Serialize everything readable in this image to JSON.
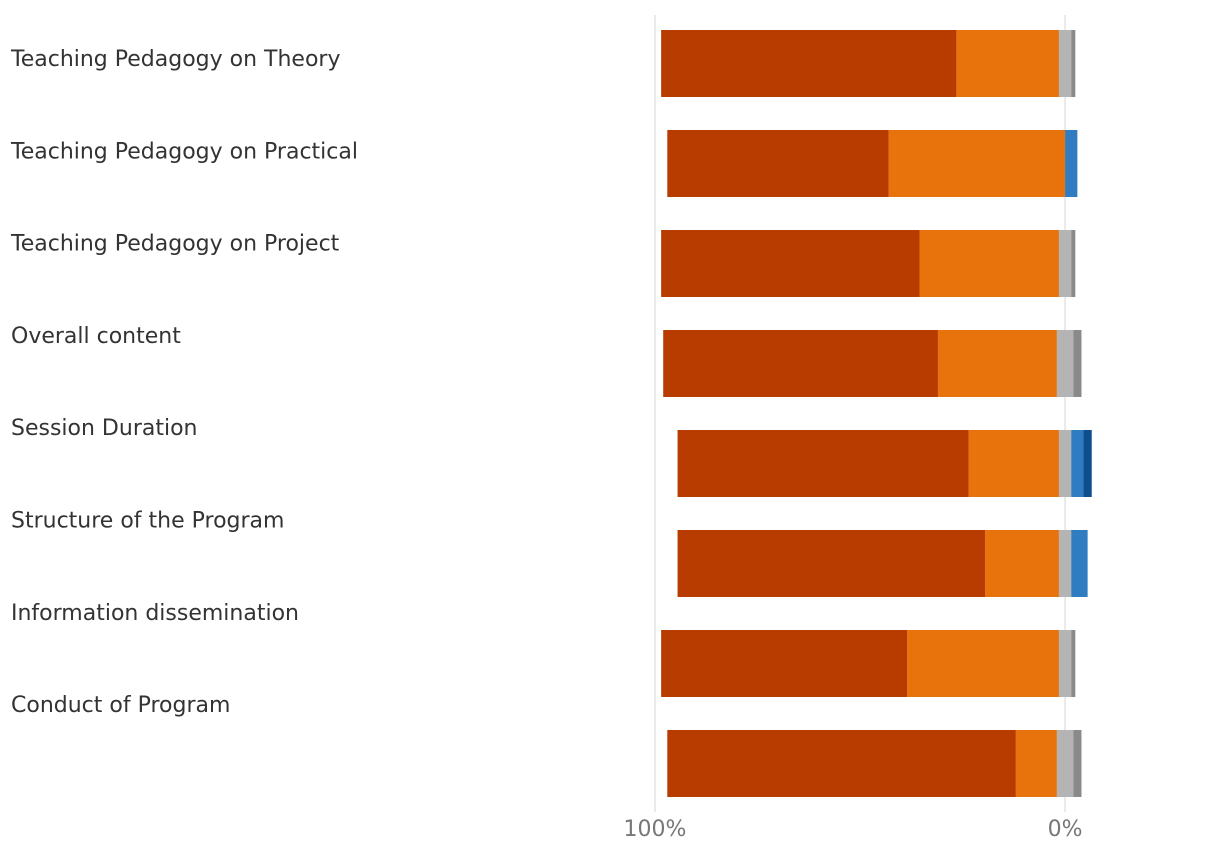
{
  "chart_data": {
    "type": "diverging-bar",
    "categories": [
      "Teaching Pedagogy on Theory",
      "Teaching Pedagogy on Practical",
      "Teaching Pedagogy on Project",
      "Overall content",
      "Session Duration",
      "Structure of the Program",
      "Information dissemination",
      "Conduct of Program"
    ],
    "series": [
      {
        "color": "#b83c00",
        "values": [
          72,
          54,
          63,
          67,
          71,
          75,
          60,
          85
        ]
      },
      {
        "color": "#e8730c",
        "values": [
          25,
          43,
          34,
          29,
          22,
          18,
          37,
          10
        ]
      },
      {
        "color": "#b4b4b4",
        "values": [
          3,
          0,
          3,
          4,
          3,
          3,
          3,
          4
        ]
      },
      {
        "color": "#8a8a8a",
        "values": [
          1,
          0,
          1,
          2,
          0,
          0,
          1,
          2
        ]
      },
      {
        "color": "#2f7dc0",
        "values": [
          0,
          3,
          0,
          0,
          3,
          4,
          0,
          0
        ]
      },
      {
        "color": "#0f4e8c",
        "values": [
          0,
          0,
          0,
          0,
          2,
          0,
          0,
          0
        ]
      }
    ],
    "xlim": [
      100,
      -39
    ],
    "xticks": [
      {
        "value": 100,
        "label": "100%"
      },
      {
        "value": 0,
        "label": "0%"
      }
    ],
    "grid": true
  }
}
